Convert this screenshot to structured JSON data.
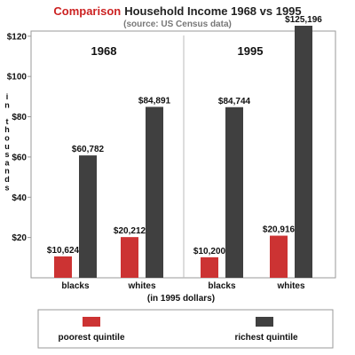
{
  "chart_data": {
    "type": "bar",
    "title": {
      "highlight": "Comparison",
      "rest": "Household Income 1968 vs 1995"
    },
    "subtitle": "(source: US Census data)",
    "note": "(in 1995 dollars)",
    "ylabel": "in thousands",
    "ylim": [
      0,
      125196
    ],
    "yticks": [
      {
        "value": 20000,
        "label": "$20"
      },
      {
        "value": 40000,
        "label": "$40"
      },
      {
        "value": 60000,
        "label": "$60"
      },
      {
        "value": 80000,
        "label": "$80"
      },
      {
        "value": 100000,
        "label": "$100"
      },
      {
        "value": 120000,
        "label": "$120"
      }
    ],
    "panels": [
      {
        "year": "1968",
        "groups": [
          {
            "category": "blacks",
            "poorest": 10624,
            "poorest_label": "$10,624",
            "richest": 60782,
            "richest_label": "$60,782"
          },
          {
            "category": "whites",
            "poorest": 20212,
            "poorest_label": "$20,212",
            "richest": 84891,
            "richest_label": "$84,891"
          }
        ]
      },
      {
        "year": "1995",
        "groups": [
          {
            "category": "blacks",
            "poorest": 10200,
            "poorest_label": "$10,200",
            "richest": 84744,
            "richest_label": "$84,744"
          },
          {
            "category": "whites",
            "poorest": 20916,
            "poorest_label": "$20,916",
            "richest": 125196,
            "richest_label": "$125,196"
          }
        ]
      }
    ],
    "legend": [
      {
        "name": "poorest quintile",
        "color": "#cc3333"
      },
      {
        "name": "richest quintile",
        "color": "#404040"
      }
    ],
    "colors": {
      "title_highlight": "#cc2222",
      "title": "#222222",
      "subtitle": "#777777",
      "frame": "#9a9a9a",
      "divider": "#bbbbbb",
      "text": "#111111"
    }
  }
}
